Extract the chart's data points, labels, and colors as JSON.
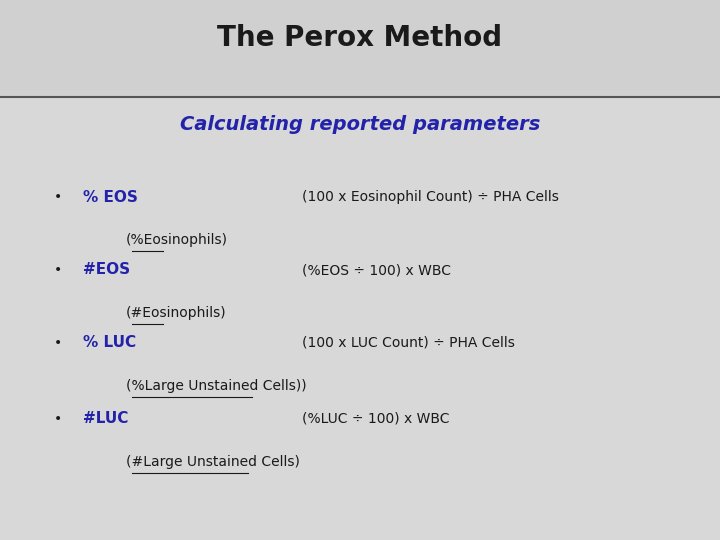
{
  "title": "The Perox Method",
  "subtitle": "Calculating reported parameters",
  "title_color": "#1a1a1a",
  "subtitle_color": "#2222aa",
  "background_color": "#d8d8d8",
  "content_bg_color": "#e8e8e8",
  "bullet_color": "#1a1a1a",
  "label_color": "#2222aa",
  "text_color": "#1a1a1a",
  "items": [
    {
      "label": "% EOS",
      "formula": "(100 x Eosinophil Count) ÷ PHA Cells",
      "subtext": "(%Eosinophils)",
      "subtext_underline": [
        1,
        4
      ]
    },
    {
      "label": "#EOS",
      "formula": "(%EOS ÷ 100) x WBC",
      "subtext": "(#Eosinophils)",
      "subtext_underline": [
        1,
        4
      ]
    },
    {
      "label": "% LUC",
      "formula": "(100 x LUC Count) ÷ PHA Cells",
      "subtext": "(%Large Unstained Cells))",
      "subtext_underline": [
        2,
        3
      ]
    },
    {
      "label": "#LUC",
      "formula": "(%LUC ÷ 100) x WBC",
      "subtext": "(#Large Unstained Cells)",
      "subtext_underline": [
        2,
        3
      ]
    }
  ]
}
